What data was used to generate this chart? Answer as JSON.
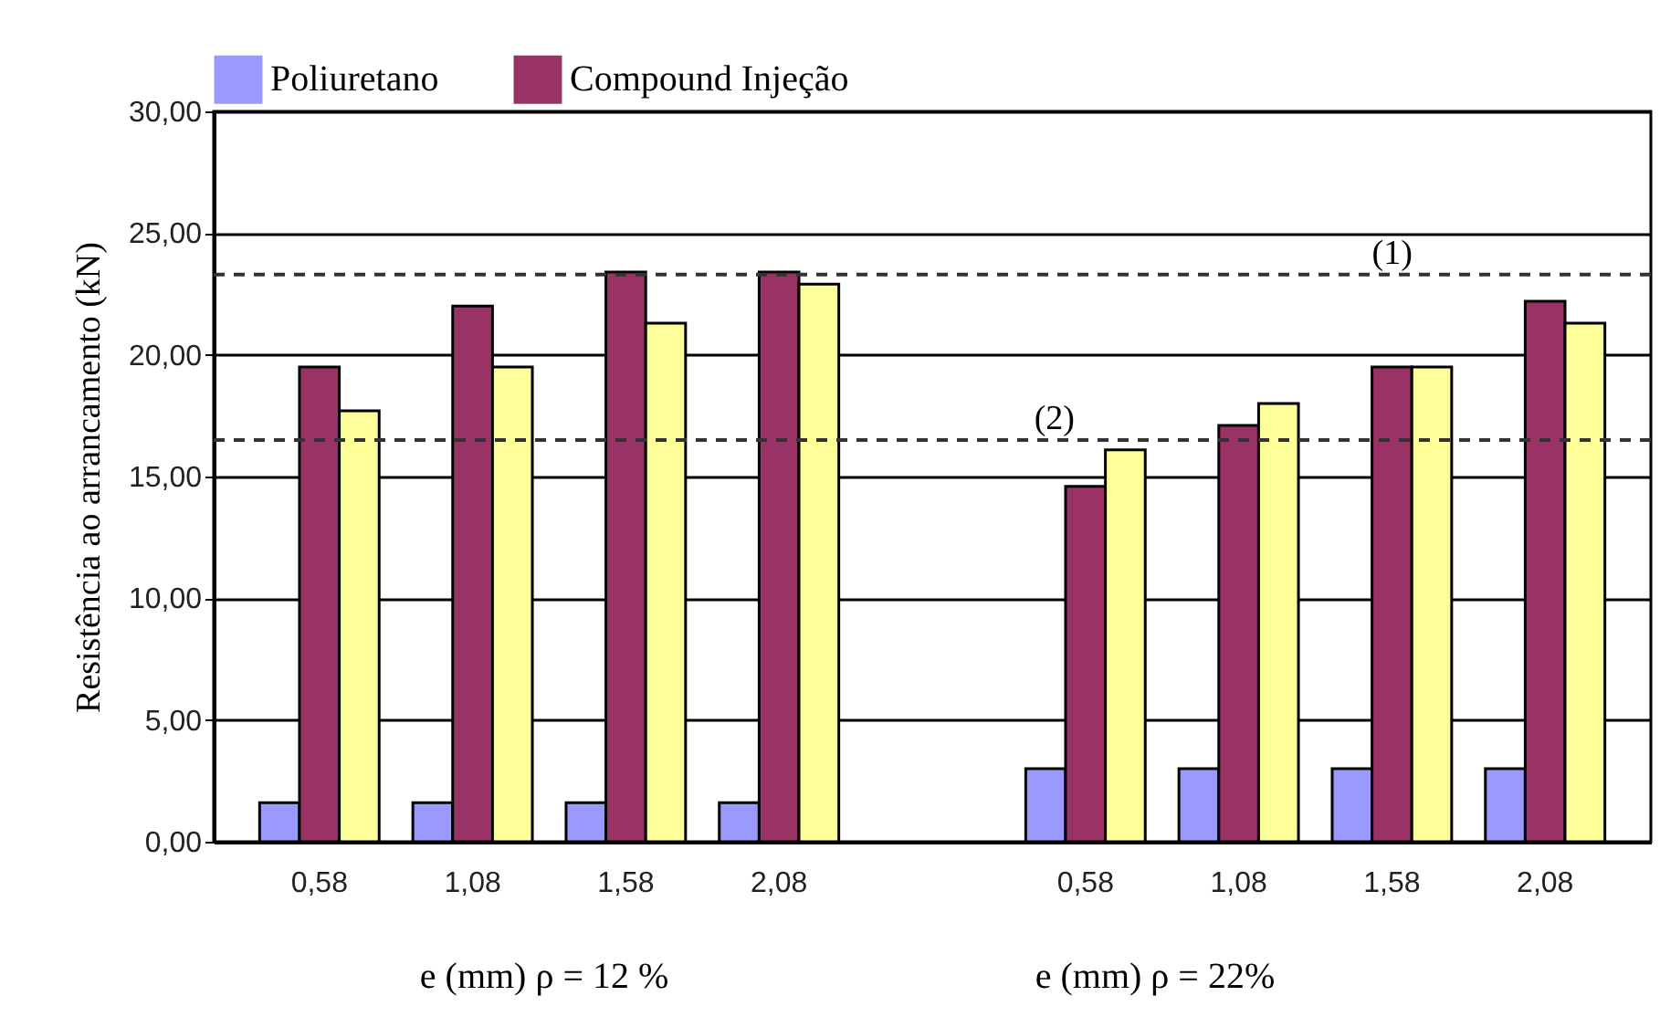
{
  "chart_data": {
    "type": "bar",
    "ylabel": "Resistência ao arrancamento (kN)",
    "categories": [
      "0,58",
      "1,08",
      "1,58",
      "2,08",
      null,
      "0,58",
      "1,08",
      "1,58",
      "2,08"
    ],
    "series": [
      {
        "name": "Poliuretano",
        "color": "#9999ff",
        "values": [
          1.6,
          1.6,
          1.6,
          1.6,
          null,
          3.0,
          3.0,
          3.0,
          3.0
        ]
      },
      {
        "name": "Compound Injeção",
        "color": "#993366",
        "values": [
          19.5,
          22.0,
          23.4,
          23.4,
          null,
          14.6,
          17.1,
          19.5,
          22.2
        ]
      },
      {
        "color": "#ffff99",
        "values": [
          17.7,
          19.5,
          21.3,
          22.9,
          null,
          16.1,
          18.0,
          19.5,
          21.3
        ]
      }
    ],
    "ylim": [
      0,
      30
    ],
    "yticks": [
      {
        "value": 0,
        "label": "0,00"
      },
      {
        "value": 5,
        "label": "5,00"
      },
      {
        "value": 10,
        "label": "10,00"
      },
      {
        "value": 15,
        "label": "15,00"
      },
      {
        "value": 20,
        "label": "20,00"
      },
      {
        "value": 25,
        "label": "25,00"
      },
      {
        "value": 30,
        "label": "30,00"
      }
    ],
    "ref_lines": [
      {
        "axis": "y",
        "value": 23.3,
        "line_style": "dashed"
      },
      {
        "axis": "y",
        "value": 16.5,
        "line_style": "dashed"
      }
    ],
    "annotations": [
      {
        "text": "(1)",
        "y": 23.3
      },
      {
        "text": "(2)",
        "y": 16.5
      },
      "e (mm) ρ = 12 %",
      "e (mm) ρ = 22%"
    ],
    "grid": "y",
    "legend": "top"
  }
}
